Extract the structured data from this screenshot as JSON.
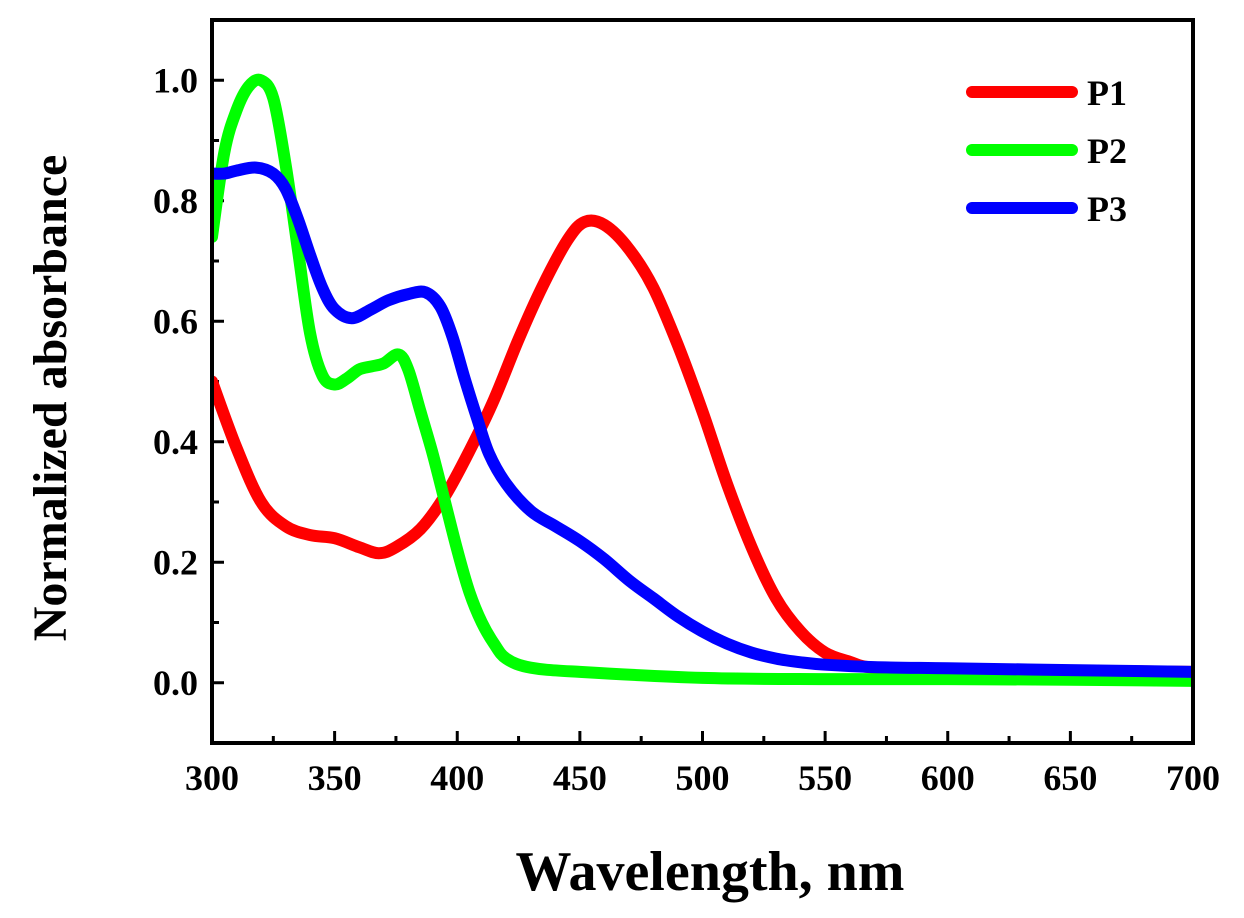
{
  "chart_data": {
    "type": "line",
    "title": "",
    "xlabel": "Wavelength, nm",
    "ylabel": "Normalized absorbance",
    "xlim": [
      300,
      700
    ],
    "ylim": [
      -0.1,
      1.1
    ],
    "x_ticks": [
      300,
      350,
      400,
      450,
      500,
      550,
      600,
      650,
      700
    ],
    "x_tick_labels": [
      "300",
      "350",
      "400",
      "450",
      "500",
      "550",
      "600",
      "650",
      "700"
    ],
    "y_ticks": [
      0.0,
      0.2,
      0.4,
      0.6,
      0.8,
      1.0
    ],
    "y_tick_labels": [
      "0.0",
      "0.2",
      "0.4",
      "0.6",
      "0.8",
      "1.0"
    ],
    "grid": false,
    "legend_position": "top-right",
    "series": [
      {
        "name": "P1",
        "color": "#ff0000",
        "points": [
          [
            300,
            0.5
          ],
          [
            310,
            0.39
          ],
          [
            320,
            0.3
          ],
          [
            330,
            0.26
          ],
          [
            340,
            0.245
          ],
          [
            350,
            0.24
          ],
          [
            360,
            0.225
          ],
          [
            368,
            0.215
          ],
          [
            375,
            0.225
          ],
          [
            385,
            0.255
          ],
          [
            395,
            0.31
          ],
          [
            405,
            0.385
          ],
          [
            415,
            0.47
          ],
          [
            425,
            0.57
          ],
          [
            435,
            0.66
          ],
          [
            445,
            0.735
          ],
          [
            452,
            0.765
          ],
          [
            460,
            0.76
          ],
          [
            470,
            0.72
          ],
          [
            480,
            0.655
          ],
          [
            490,
            0.56
          ],
          [
            500,
            0.45
          ],
          [
            510,
            0.33
          ],
          [
            520,
            0.225
          ],
          [
            530,
            0.14
          ],
          [
            540,
            0.085
          ],
          [
            550,
            0.05
          ],
          [
            560,
            0.035
          ],
          [
            570,
            0.025
          ],
          [
            600,
            0.022
          ],
          [
            650,
            0.02
          ],
          [
            700,
            0.018
          ]
        ]
      },
      {
        "name": "P2",
        "color": "#00ff00",
        "points": [
          [
            300,
            0.74
          ],
          [
            305,
            0.88
          ],
          [
            310,
            0.95
          ],
          [
            315,
            0.99
          ],
          [
            320,
            1.0
          ],
          [
            325,
            0.97
          ],
          [
            330,
            0.86
          ],
          [
            335,
            0.72
          ],
          [
            340,
            0.58
          ],
          [
            345,
            0.51
          ],
          [
            350,
            0.495
          ],
          [
            355,
            0.505
          ],
          [
            360,
            0.52
          ],
          [
            365,
            0.525
          ],
          [
            370,
            0.53
          ],
          [
            376,
            0.545
          ],
          [
            380,
            0.52
          ],
          [
            385,
            0.45
          ],
          [
            390,
            0.38
          ],
          [
            395,
            0.3
          ],
          [
            400,
            0.22
          ],
          [
            405,
            0.15
          ],
          [
            410,
            0.1
          ],
          [
            415,
            0.065
          ],
          [
            420,
            0.04
          ],
          [
            430,
            0.025
          ],
          [
            450,
            0.018
          ],
          [
            500,
            0.008
          ],
          [
            550,
            0.006
          ],
          [
            600,
            0.006
          ],
          [
            650,
            0.005
          ],
          [
            700,
            0.003
          ]
        ]
      },
      {
        "name": "P3",
        "color": "#0000ff",
        "points": [
          [
            300,
            0.845
          ],
          [
            305,
            0.845
          ],
          [
            310,
            0.85
          ],
          [
            318,
            0.855
          ],
          [
            325,
            0.845
          ],
          [
            330,
            0.82
          ],
          [
            335,
            0.77
          ],
          [
            340,
            0.71
          ],
          [
            345,
            0.655
          ],
          [
            350,
            0.62
          ],
          [
            357,
            0.605
          ],
          [
            365,
            0.62
          ],
          [
            372,
            0.635
          ],
          [
            380,
            0.645
          ],
          [
            387,
            0.648
          ],
          [
            393,
            0.625
          ],
          [
            398,
            0.575
          ],
          [
            403,
            0.505
          ],
          [
            408,
            0.44
          ],
          [
            413,
            0.38
          ],
          [
            420,
            0.33
          ],
          [
            430,
            0.285
          ],
          [
            440,
            0.26
          ],
          [
            450,
            0.235
          ],
          [
            460,
            0.205
          ],
          [
            470,
            0.17
          ],
          [
            480,
            0.14
          ],
          [
            490,
            0.11
          ],
          [
            500,
            0.085
          ],
          [
            510,
            0.065
          ],
          [
            520,
            0.05
          ],
          [
            530,
            0.04
          ],
          [
            540,
            0.034
          ],
          [
            550,
            0.03
          ],
          [
            570,
            0.026
          ],
          [
            600,
            0.024
          ],
          [
            650,
            0.021
          ],
          [
            700,
            0.018
          ]
        ]
      }
    ]
  }
}
